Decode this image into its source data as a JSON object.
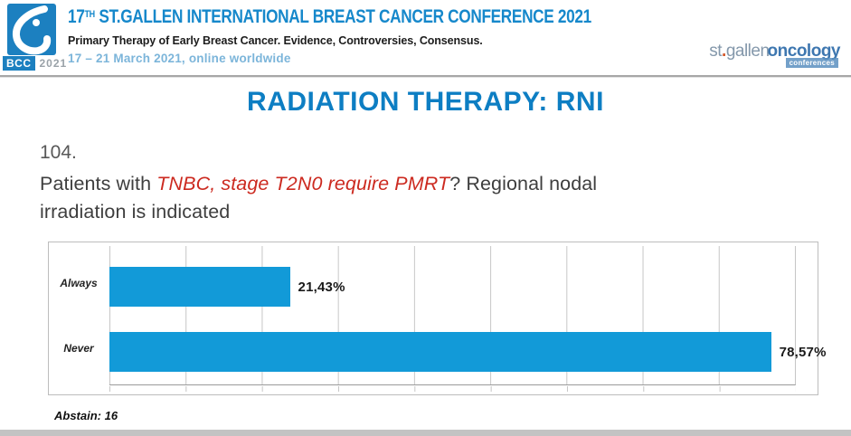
{
  "header": {
    "logo": {
      "caption_bcc": "BCC",
      "caption_year": "2021"
    },
    "title_num": "17",
    "title_sup": "TH",
    "title_rest": " ST.GALLEN INTERNATIONAL BREAST CANCER CONFERENCE 2021",
    "subtitle": "Primary Therapy of Early Breast Cancer. Evidence, Controversies, Consensus.",
    "dates": "17 – 21 March 2021, online worldwide",
    "brand": {
      "st": "st",
      "dot": ".",
      "gallen": "gallen",
      "oncology": "oncology",
      "tag": "conferences"
    }
  },
  "slide": {
    "title": "RADIATION THERAPY: RNI",
    "question": {
      "number": "104.",
      "prefix": "Patients with ",
      "emphasis": "TNBC, stage T2N0 require PMRT",
      "suffix": "? Regional nodal",
      "line2": "irradiation is indicated"
    },
    "abstain": "Abstain: 16"
  },
  "chart_data": {
    "type": "bar",
    "orientation": "horizontal",
    "title": "",
    "categories": [
      "Always",
      "Never"
    ],
    "values": [
      21.43,
      78.57
    ],
    "value_labels": [
      "21,43%",
      "78,57%"
    ],
    "xlim": [
      0,
      90
    ],
    "gridline_step": 10,
    "grid": true,
    "legend": false,
    "bar_color": "#129ad8"
  },
  "colors": {
    "header_title_blue": "#1688cb",
    "dates_blue": "#7cb5da",
    "slide_title_blue": "#0d7ec3",
    "question_gray": "#3e3e3e",
    "emphasis_red": "#cc2a20",
    "bar_blue": "#129ad8",
    "logo_blue": "#1c80c0",
    "brand_gray_blue": "#8498ab",
    "brand_blue": "#3e77b0"
  }
}
